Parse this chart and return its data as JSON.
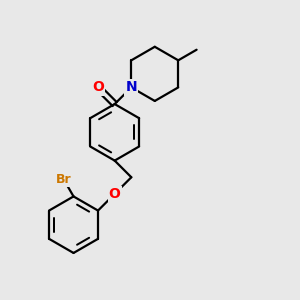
{
  "background_color": "#e8e8e8",
  "bond_color": "#000000",
  "bond_width": 1.6,
  "atom_colors": {
    "O": "#ff0000",
    "N": "#0000cc",
    "Br": "#cc7700",
    "C": "#000000"
  },
  "font_size_atom": 10,
  "font_size_br": 9
}
